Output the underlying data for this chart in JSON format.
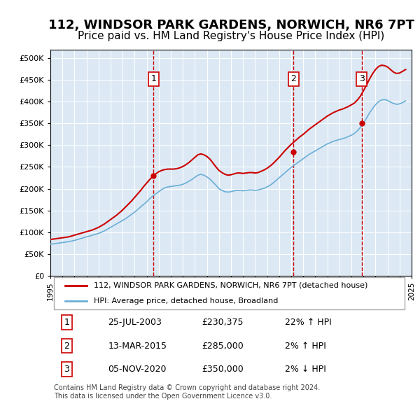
{
  "title": "112, WINDSOR PARK GARDENS, NORWICH, NR6 7PT",
  "subtitle": "Price paid vs. HM Land Registry's House Price Index (HPI)",
  "title_fontsize": 13,
  "subtitle_fontsize": 11,
  "background_color": "#dce9f5",
  "plot_bg_color": "#dce9f5",
  "ylabel": "",
  "ylim": [
    0,
    520000
  ],
  "yticks": [
    0,
    50000,
    100000,
    150000,
    200000,
    250000,
    300000,
    350000,
    400000,
    450000,
    500000
  ],
  "ytick_labels": [
    "£0",
    "£50K",
    "£100K",
    "£150K",
    "£200K",
    "£250K",
    "£300K",
    "£350K",
    "£400K",
    "£450K",
    "£500K"
  ],
  "xmin_year": 1995,
  "xmax_year": 2025,
  "xticks": [
    1995,
    1996,
    1997,
    1998,
    1999,
    2000,
    2001,
    2002,
    2003,
    2004,
    2005,
    2006,
    2007,
    2008,
    2009,
    2010,
    2011,
    2012,
    2013,
    2014,
    2015,
    2016,
    2017,
    2018,
    2019,
    2020,
    2021,
    2022,
    2023,
    2024,
    2025
  ],
  "hpi_color": "#6baed6",
  "price_color": "#cc0000",
  "vline_color": "#cc0000",
  "sale_dates": [
    2003.57,
    2015.19,
    2020.85
  ],
  "sale_prices": [
    230375,
    285000,
    350000
  ],
  "sale_labels": [
    "1",
    "2",
    "3"
  ],
  "legend_price_label": "112, WINDSOR PARK GARDENS, NORWICH, NR6 7PT (detached house)",
  "legend_hpi_label": "HPI: Average price, detached house, Broadland",
  "table_rows": [
    [
      "1",
      "25-JUL-2003",
      "£230,375",
      "22% ↑ HPI"
    ],
    [
      "2",
      "13-MAR-2015",
      "£285,000",
      "2% ↑ HPI"
    ],
    [
      "3",
      "05-NOV-2020",
      "£350,000",
      "2% ↓ HPI"
    ]
  ],
  "footnote": "Contains HM Land Registry data © Crown copyright and database right 2024.\nThis data is licensed under the Open Government Licence v3.0.",
  "hpi_x": [
    1995.0,
    1995.25,
    1995.5,
    1995.75,
    1996.0,
    1996.25,
    1996.5,
    1996.75,
    1997.0,
    1997.25,
    1997.5,
    1997.75,
    1998.0,
    1998.25,
    1998.5,
    1998.75,
    1999.0,
    1999.25,
    1999.5,
    1999.75,
    2000.0,
    2000.25,
    2000.5,
    2000.75,
    2001.0,
    2001.25,
    2001.5,
    2001.75,
    2002.0,
    2002.25,
    2002.5,
    2002.75,
    2003.0,
    2003.25,
    2003.5,
    2003.75,
    2004.0,
    2004.25,
    2004.5,
    2004.75,
    2005.0,
    2005.25,
    2005.5,
    2005.75,
    2006.0,
    2006.25,
    2006.5,
    2006.75,
    2007.0,
    2007.25,
    2007.5,
    2007.75,
    2008.0,
    2008.25,
    2008.5,
    2008.75,
    2009.0,
    2009.25,
    2009.5,
    2009.75,
    2010.0,
    2010.25,
    2010.5,
    2010.75,
    2011.0,
    2011.25,
    2011.5,
    2011.75,
    2012.0,
    2012.25,
    2012.5,
    2012.75,
    2013.0,
    2013.25,
    2013.5,
    2013.75,
    2014.0,
    2014.25,
    2014.5,
    2014.75,
    2015.0,
    2015.25,
    2015.5,
    2015.75,
    2016.0,
    2016.25,
    2016.5,
    2016.75,
    2017.0,
    2017.25,
    2017.5,
    2017.75,
    2018.0,
    2018.25,
    2018.5,
    2018.75,
    2019.0,
    2019.25,
    2019.5,
    2019.75,
    2020.0,
    2020.25,
    2020.5,
    2020.75,
    2021.0,
    2021.25,
    2021.5,
    2021.75,
    2022.0,
    2022.25,
    2022.5,
    2022.75,
    2023.0,
    2023.25,
    2023.5,
    2023.75,
    2024.0,
    2024.25,
    2024.5
  ],
  "hpi_y": [
    72000,
    73000,
    74000,
    75000,
    76000,
    77000,
    78000,
    79500,
    81000,
    83000,
    85000,
    87000,
    89000,
    91000,
    93000,
    95000,
    97000,
    100000,
    103000,
    107000,
    111000,
    115000,
    119000,
    123000,
    127000,
    131000,
    136000,
    141000,
    146000,
    152000,
    158000,
    164000,
    170000,
    177000,
    183000,
    188000,
    193000,
    198000,
    202000,
    204000,
    205000,
    206000,
    207000,
    208000,
    210000,
    213000,
    217000,
    221000,
    226000,
    231000,
    233000,
    231000,
    227000,
    222000,
    215000,
    208000,
    200000,
    196000,
    193000,
    192000,
    193000,
    195000,
    196000,
    196000,
    195000,
    196000,
    197000,
    197000,
    196000,
    197000,
    199000,
    201000,
    204000,
    208000,
    213000,
    219000,
    225000,
    231000,
    237000,
    243000,
    249000,
    254000,
    259000,
    264000,
    269000,
    274000,
    279000,
    283000,
    287000,
    291000,
    295000,
    299000,
    303000,
    306000,
    309000,
    311000,
    313000,
    315000,
    317000,
    320000,
    323000,
    327000,
    333000,
    341000,
    351000,
    362000,
    374000,
    384000,
    393000,
    400000,
    404000,
    405000,
    403000,
    399000,
    396000,
    394000,
    395000,
    398000,
    402000
  ],
  "price_x": [
    1995.0,
    1995.25,
    1995.5,
    1995.75,
    1996.0,
    1996.25,
    1996.5,
    1996.75,
    1997.0,
    1997.25,
    1997.5,
    1997.75,
    1998.0,
    1998.25,
    1998.5,
    1998.75,
    1999.0,
    1999.25,
    1999.5,
    1999.75,
    2000.0,
    2000.25,
    2000.5,
    2000.75,
    2001.0,
    2001.25,
    2001.5,
    2001.75,
    2002.0,
    2002.25,
    2002.5,
    2002.75,
    2003.0,
    2003.25,
    2003.5,
    2003.75,
    2004.0,
    2004.25,
    2004.5,
    2004.75,
    2005.0,
    2005.25,
    2005.5,
    2005.75,
    2006.0,
    2006.25,
    2006.5,
    2006.75,
    2007.0,
    2007.25,
    2007.5,
    2007.75,
    2008.0,
    2008.25,
    2008.5,
    2008.75,
    2009.0,
    2009.25,
    2009.5,
    2009.75,
    2010.0,
    2010.25,
    2010.5,
    2010.75,
    2011.0,
    2011.25,
    2011.5,
    2011.75,
    2012.0,
    2012.25,
    2012.5,
    2012.75,
    2013.0,
    2013.25,
    2013.5,
    2013.75,
    2014.0,
    2014.25,
    2014.5,
    2014.75,
    2015.0,
    2015.25,
    2015.5,
    2015.75,
    2016.0,
    2016.25,
    2016.5,
    2016.75,
    2017.0,
    2017.25,
    2017.5,
    2017.75,
    2018.0,
    2018.25,
    2018.5,
    2018.75,
    2019.0,
    2019.25,
    2019.5,
    2019.75,
    2020.0,
    2020.25,
    2020.5,
    2020.75,
    2021.0,
    2021.25,
    2021.5,
    2021.75,
    2022.0,
    2022.25,
    2022.5,
    2022.75,
    2023.0,
    2023.25,
    2023.5,
    2023.75,
    2024.0,
    2024.25,
    2024.5
  ],
  "price_y": [
    83000,
    84000,
    85000,
    86000,
    87000,
    88000,
    89000,
    91000,
    93000,
    95000,
    97000,
    99000,
    101000,
    103000,
    105000,
    108000,
    111000,
    115000,
    119000,
    124000,
    129000,
    134000,
    139000,
    145000,
    151000,
    158000,
    165000,
    172000,
    180000,
    188000,
    196000,
    205000,
    213000,
    221000,
    228000,
    234000,
    239000,
    242000,
    244000,
    245000,
    245000,
    245000,
    246000,
    248000,
    251000,
    255000,
    260000,
    266000,
    272000,
    278000,
    280000,
    278000,
    274000,
    268000,
    259000,
    250000,
    242000,
    237000,
    233000,
    231000,
    232000,
    234000,
    236000,
    236000,
    235000,
    236000,
    237000,
    237000,
    236000,
    237000,
    240000,
    243000,
    247000,
    252000,
    258000,
    265000,
    272000,
    280000,
    288000,
    295000,
    302000,
    308000,
    314000,
    320000,
    325000,
    331000,
    337000,
    342000,
    347000,
    352000,
    357000,
    362000,
    367000,
    371000,
    375000,
    378000,
    381000,
    383000,
    386000,
    389000,
    393000,
    397000,
    404000,
    413000,
    425000,
    438000,
    452000,
    464000,
    474000,
    481000,
    484000,
    483000,
    480000,
    474000,
    468000,
    465000,
    466000,
    470000,
    474000
  ]
}
